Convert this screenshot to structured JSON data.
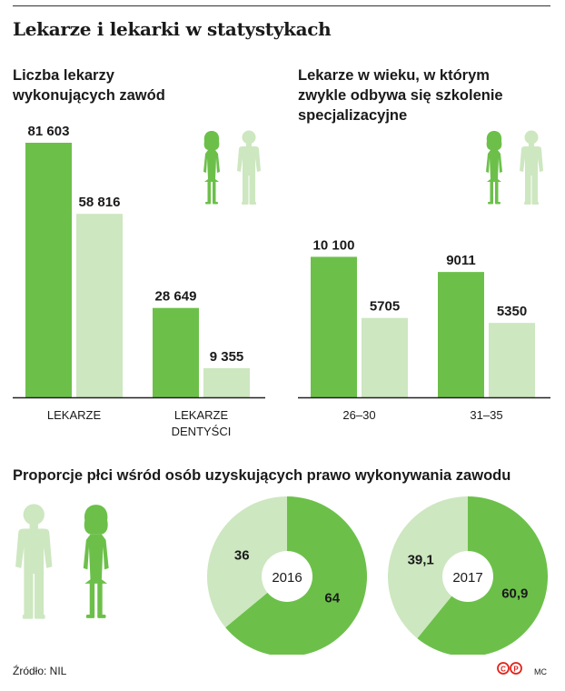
{
  "title": "Lekarze i lekarki w statystykach",
  "colors": {
    "women": "#6cc04a",
    "men": "#cde7c0",
    "text": "#1a1a1a",
    "axis": "#222222"
  },
  "icons": {
    "woman": "woman-silhouette-icon",
    "man": "man-silhouette-icon"
  },
  "source": "Źródło: NIL",
  "logo_text": "CP",
  "author": "MC",
  "chart_data": [
    {
      "type": "bar",
      "title": "Liczba lekarzy wykonujących zawód",
      "title_lines": [
        "Liczba lekarzy",
        "wykonujących zawód"
      ],
      "categories": [
        "LEKARZE",
        "LEKARZE DENTYŚCI"
      ],
      "category_lines": [
        [
          "LEKARZE"
        ],
        [
          "LEKARZE",
          "DENTYŚCI"
        ]
      ],
      "series": [
        {
          "color": "#6cc04a",
          "values": [
            81603,
            28649
          ],
          "labels": [
            "81 603",
            "28 649"
          ]
        },
        {
          "color": "#cde7c0",
          "values": [
            58816,
            9355
          ],
          "labels": [
            "58 816",
            "9 355"
          ]
        }
      ],
      "ylim": [
        0,
        81603
      ]
    },
    {
      "type": "bar",
      "title": "Lekarze w wieku, w którym zwykle odbywa się szkolenie specjalizacyjne",
      "title_lines": [
        "Lekarze w wieku, w którym",
        "zwykle odbywa się szkolenie",
        "specjalizacyjne"
      ],
      "categories": [
        "26–30",
        "31–35"
      ],
      "series": [
        {
          "color": "#6cc04a",
          "values": [
            10100,
            9011
          ],
          "labels": [
            "10 100",
            "9011"
          ]
        },
        {
          "color": "#cde7c0",
          "values": [
            5705,
            5350
          ],
          "labels": [
            "5705",
            "5350"
          ]
        }
      ],
      "ylim": [
        0,
        18300
      ]
    },
    {
      "type": "pie",
      "title": "Proporcje płci wśród osób uzyskujących prawo wykonywania zawodu",
      "charts": [
        {
          "center_label": "2016",
          "slices": [
            {
              "value": 64,
              "label": "64",
              "color": "#6cc04a"
            },
            {
              "value": 36,
              "label": "36",
              "color": "#cde7c0"
            }
          ]
        },
        {
          "center_label": "2017",
          "slices": [
            {
              "value": 60.9,
              "label": "60,9",
              "color": "#6cc04a"
            },
            {
              "value": 39.1,
              "label": "39,1",
              "color": "#cde7c0"
            }
          ]
        }
      ]
    }
  ]
}
